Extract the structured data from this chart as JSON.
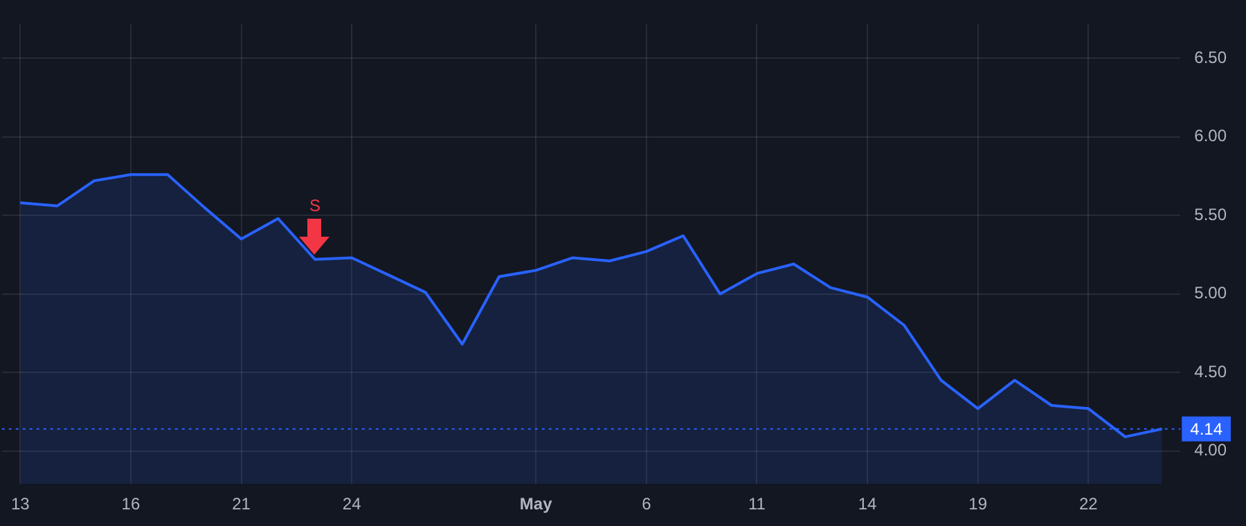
{
  "chart_data": {
    "type": "area",
    "categories": [
      "13",
      null,
      null,
      "16",
      null,
      null,
      "21",
      null,
      null,
      "24",
      null,
      null,
      null,
      null,
      "May",
      null,
      null,
      "6",
      null,
      null,
      "11",
      null,
      null,
      "14",
      null,
      null,
      "19",
      null,
      null,
      "22",
      null,
      null
    ],
    "series": [
      {
        "color": "#2962ff",
        "values": [
          5.58,
          5.56,
          5.72,
          5.76,
          5.76,
          5.55,
          5.35,
          5.48,
          5.22,
          5.23,
          5.12,
          5.01,
          4.68,
          5.11,
          5.15,
          5.23,
          5.21,
          5.27,
          5.37,
          5.0,
          5.13,
          5.19,
          5.04,
          4.98,
          4.8,
          4.45,
          4.27,
          4.45,
          4.29,
          4.27,
          4.09,
          4.14
        ]
      }
    ],
    "ylim": [
      3.79,
      6.72
    ],
    "yticks": [
      {
        "value": 4,
        "label": "4.00"
      },
      {
        "value": 4.5,
        "label": "4.50"
      },
      {
        "value": 5,
        "label": "5.00"
      },
      {
        "value": 5.5,
        "label": "5.50"
      },
      {
        "value": 6,
        "label": "6.00"
      },
      {
        "value": 6.5,
        "label": "6.50"
      }
    ],
    "ref_lines": [
      {
        "axis": "y",
        "value": 4.14,
        "label": "4.14",
        "color": "#2962ff",
        "line_style": "dotted"
      }
    ],
    "annotations": [
      {
        "text": "S",
        "y": 5.22
      }
    ],
    "grid": true,
    "legend": false,
    "marker": "none",
    "line_style": "solid"
  }
}
